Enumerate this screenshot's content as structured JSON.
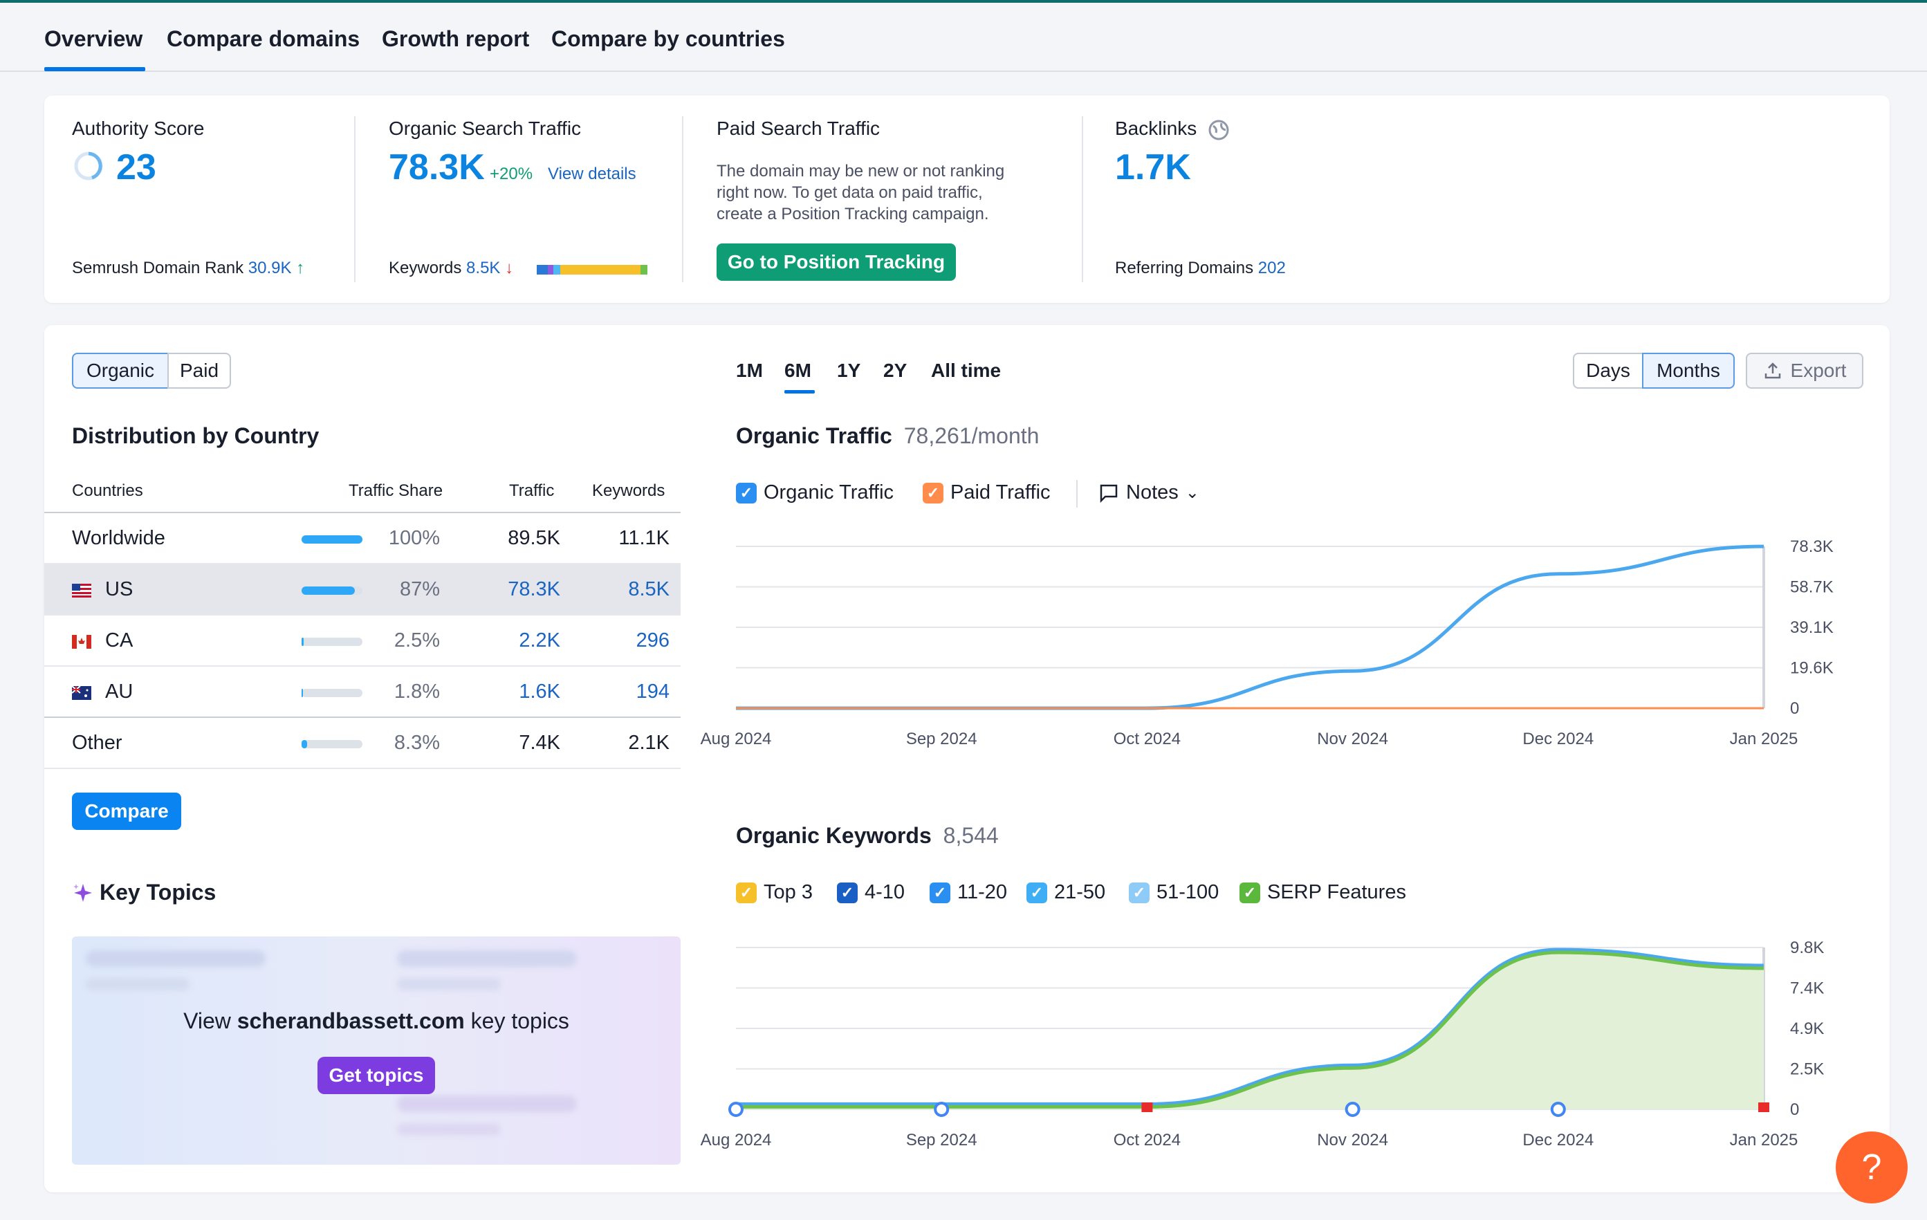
{
  "tabs": [
    "Overview",
    "Compare domains",
    "Growth report",
    "Compare by countries"
  ],
  "summary": {
    "authority": {
      "label": "Authority Score",
      "value": "23",
      "rank_label": "Semrush Domain Rank",
      "rank_value": "30.9K"
    },
    "organic": {
      "label": "Organic Search Traffic",
      "value": "78.3K",
      "change": "+20%",
      "link": "View details",
      "keywords_label": "Keywords",
      "keywords_value": "8.5K"
    },
    "paid": {
      "label": "Paid Search Traffic",
      "desc1": "The domain may be new or not ranking",
      "desc2": "right now. To get data on paid traffic,",
      "desc3": "create a Position Tracking campaign.",
      "button": "Go to Position Tracking"
    },
    "backlinks": {
      "label": "Backlinks",
      "value": "1.7K",
      "ref_label": "Referring Domains",
      "ref_value": "202"
    }
  },
  "toggle": {
    "organic": "Organic",
    "paid": "Paid"
  },
  "periods": [
    "1M",
    "6M",
    "1Y",
    "2Y",
    "All time"
  ],
  "granularity": {
    "days": "Days",
    "months": "Months"
  },
  "export_label": "Export",
  "distribution": {
    "title": "Distribution by Country",
    "headers": {
      "countries": "Countries",
      "share": "Traffic Share",
      "traffic": "Traffic",
      "keywords": "Keywords"
    },
    "rows": [
      {
        "country": "Worldwide",
        "share": "100%",
        "share_fraction": 1.0,
        "traffic": "89.5K",
        "keywords": "11.1K"
      },
      {
        "country": "US",
        "share": "87%",
        "share_fraction": 0.87,
        "traffic": "78.3K",
        "keywords": "8.5K"
      },
      {
        "country": "CA",
        "share": "2.5%",
        "share_fraction": 0.025,
        "traffic": "2.2K",
        "keywords": "296"
      },
      {
        "country": "AU",
        "share": "1.8%",
        "share_fraction": 0.018,
        "traffic": "1.6K",
        "keywords": "194"
      },
      {
        "country": "Other",
        "share": "8.3%",
        "share_fraction": 0.083,
        "traffic": "7.4K",
        "keywords": "2.1K"
      }
    ],
    "compare_button": "Compare"
  },
  "key_topics": {
    "title": "Key Topics",
    "text_prefix": "View ",
    "domain": "scherandbassett.com",
    "text_suffix": " key topics",
    "button": "Get topics"
  },
  "organic_traffic": {
    "title": "Organic Traffic",
    "value": "78,261/month",
    "legend": [
      "Organic Traffic",
      "Paid Traffic"
    ],
    "notes": "Notes"
  },
  "organic_keywords": {
    "title": "Organic Keywords",
    "value": "8,544",
    "legend": [
      "Top 3",
      "4-10",
      "11-20",
      "21-50",
      "51-100",
      "SERP Features"
    ]
  },
  "help_label": "?",
  "chart_data": [
    {
      "type": "line",
      "title": "Organic Traffic",
      "x": [
        "Aug 2024",
        "Sep 2024",
        "Oct 2024",
        "Nov 2024",
        "Dec 2024",
        "Jan 2025"
      ],
      "y_ticks": [
        "78.3K",
        "58.7K",
        "39.1K",
        "19.6K",
        "0"
      ],
      "ylim": [
        0,
        78300
      ],
      "series": [
        {
          "name": "Organic Traffic",
          "color": "#4ca8ee",
          "values": [
            0,
            0,
            0,
            18000,
            65000,
            78261
          ]
        },
        {
          "name": "Paid Traffic",
          "color": "#ff8c4a",
          "values": [
            0,
            0,
            0,
            0,
            0,
            0
          ]
        }
      ]
    },
    {
      "type": "area",
      "title": "Organic Keywords",
      "x": [
        "Aug 2024",
        "Sep 2024",
        "Oct 2024",
        "Nov 2024",
        "Dec 2024",
        "Jan 2025"
      ],
      "y_ticks": [
        "9.8K",
        "7.4K",
        "4.9K",
        "2.5K",
        "0"
      ],
      "ylim": [
        0,
        9800
      ],
      "series": [
        {
          "name": "SERP Features",
          "color": "#6cc24a",
          "values": [
            150,
            150,
            150,
            2500,
            9500,
            8544
          ]
        }
      ]
    }
  ]
}
